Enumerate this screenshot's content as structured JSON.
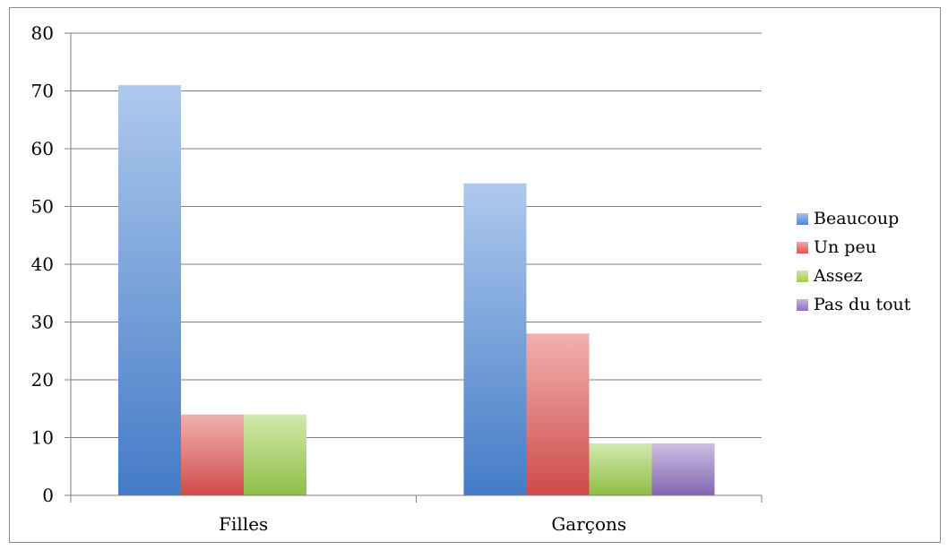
{
  "chart_data": {
    "type": "bar",
    "categories": [
      "Filles",
      "Garçons"
    ],
    "series": [
      {
        "name": "Beaucoup",
        "values": [
          71,
          54
        ],
        "color": "#4a86d8"
      },
      {
        "name": "Un peu",
        "values": [
          14,
          28
        ],
        "color": "#e0524f"
      },
      {
        "name": "Assez",
        "values": [
          14,
          9
        ],
        "color": "#9bcf4a"
      },
      {
        "name": "Pas du tout",
        "values": [
          null,
          9
        ],
        "color": "#8f6fc0"
      }
    ],
    "ylim": [
      0,
      80
    ],
    "yticks": [
      0,
      10,
      20,
      30,
      40,
      50,
      60,
      70,
      80
    ],
    "grid": true,
    "legend": "right"
  }
}
